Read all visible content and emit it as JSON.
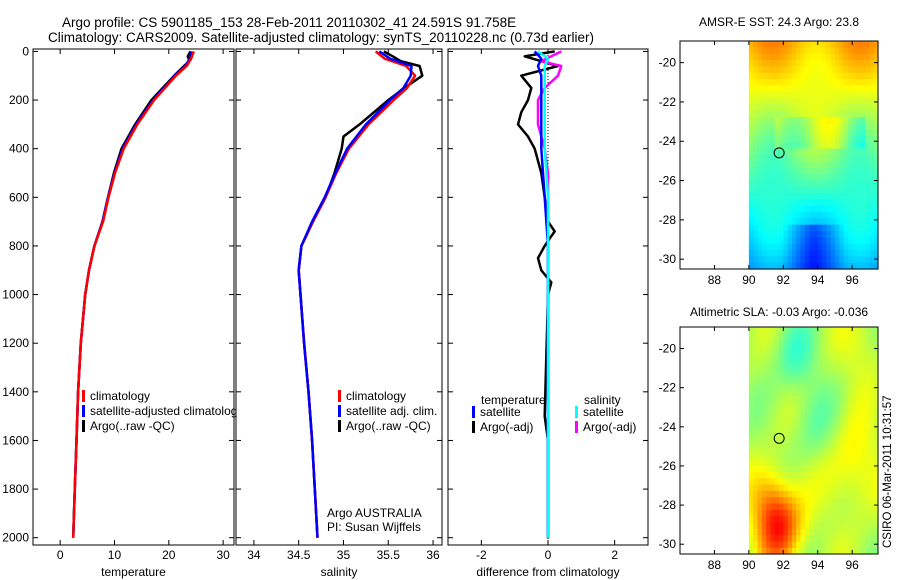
{
  "figure": {
    "title_line1": "Argo profile: CS 5901185_153 28-Feb-2011 20110302_41 24.591S 91.758E",
    "title_line2": "Climatology: CARS2009. Satellite-adjusted climatology: synTS_20110228.nc (0.73d earlier)",
    "credit": "CSIRO 06-Mar-2011 10:31:57"
  },
  "colors": {
    "climatology": "#ff0000",
    "satellite": "#0000ff",
    "argo": "#000000",
    "satellite_salinity": "#00ffff",
    "argo_salinity": "#ff00ff"
  },
  "chart_data": [
    {
      "type": "line",
      "xlabel": "temperature",
      "xlim": [
        -5,
        32
      ],
      "ylim": [
        2030,
        -10
      ],
      "x_ticks": [
        0,
        10,
        20,
        30
      ],
      "y_ticks": [
        0,
        200,
        400,
        600,
        800,
        1000,
        1200,
        1400,
        1600,
        1800,
        2000
      ],
      "legend": {
        "position": "bottom",
        "entries": [
          "climatology",
          "satellite-adjusted climatology",
          "Argo(..raw -QC)"
        ]
      },
      "series": [
        {
          "name": "climatology",
          "depth": [
            0,
            30,
            60,
            100,
            150,
            200,
            300,
            400,
            500,
            600,
            700,
            800,
            900,
            1000,
            1200,
            1400,
            1600,
            1800,
            2000
          ],
          "values": [
            24.6,
            24.1,
            23.3,
            21.3,
            19.3,
            17.3,
            14.2,
            11.7,
            10.1,
            8.9,
            7.9,
            6.3,
            5.3,
            4.6,
            3.8,
            3.3,
            3.0,
            2.7,
            2.4
          ]
        },
        {
          "name": "satellite-adjusted climatology",
          "depth": [
            0,
            30,
            60,
            100,
            150,
            200,
            300,
            400,
            500,
            600,
            700,
            800,
            900,
            1000,
            1200,
            1400,
            1600,
            1800,
            2000
          ],
          "values": [
            24.2,
            23.9,
            23.0,
            21.1,
            19.1,
            17.1,
            14.0,
            11.5,
            10.0,
            8.8,
            7.8,
            6.3,
            5.3,
            4.6,
            3.8,
            3.3,
            3.0,
            2.7,
            2.4
          ]
        },
        {
          "name": "Argo(..raw -QC)",
          "depth": [
            0,
            20,
            40,
            60,
            100,
            150,
            200,
            300,
            400,
            500,
            600,
            700,
            800,
            900,
            1000,
            1200,
            1400,
            1600,
            1800,
            2000
          ],
          "values": [
            24.0,
            23.5,
            23.8,
            22.8,
            21.0,
            18.9,
            16.8,
            13.8,
            11.3,
            9.9,
            8.8,
            7.8,
            6.3,
            5.3,
            4.6,
            3.8,
            3.3,
            3.0,
            2.7,
            2.4
          ]
        }
      ]
    },
    {
      "type": "line",
      "xlabel": "salinity",
      "xlim": [
        33.8,
        36.1
      ],
      "ylim": [
        2030,
        -10
      ],
      "x_ticks": [
        34,
        34.5,
        35,
        35.5,
        36
      ],
      "x_tick_labels": [
        "34",
        "34.5",
        "35",
        "35.5",
        "36"
      ],
      "legend": {
        "position": "bottom",
        "entries": [
          "climatology",
          "satellite adj. clim.",
          "Argo(..raw -QC)"
        ]
      },
      "annotation": [
        "Argo AUSTRALIA",
        "PI: Susan Wijffels"
      ],
      "series": [
        {
          "name": "climatology",
          "depth": [
            0,
            30,
            60,
            100,
            150,
            200,
            300,
            400,
            500,
            600,
            700,
            800,
            900,
            1000,
            1200,
            1400,
            1600,
            1800,
            2000
          ],
          "values": [
            35.36,
            35.46,
            35.7,
            35.8,
            35.71,
            35.56,
            35.28,
            35.06,
            34.92,
            34.8,
            34.66,
            34.53,
            34.5,
            34.52,
            34.56,
            34.61,
            34.65,
            34.68,
            34.71
          ]
        },
        {
          "name": "satellite adj. clim.",
          "depth": [
            0,
            30,
            60,
            100,
            150,
            200,
            300,
            400,
            500,
            600,
            700,
            800,
            900,
            1000,
            1200,
            1400,
            1600,
            1800,
            2000
          ],
          "values": [
            35.4,
            35.52,
            35.76,
            35.75,
            35.67,
            35.52,
            35.25,
            35.04,
            34.91,
            34.79,
            34.65,
            34.53,
            34.5,
            34.52,
            34.56,
            34.61,
            34.65,
            34.68,
            34.71
          ]
        },
        {
          "name": "Argo(..raw -QC)",
          "depth": [
            0,
            20,
            40,
            60,
            100,
            150,
            200,
            300,
            350,
            400,
            500,
            600,
            700,
            800,
            900,
            1000,
            1200,
            1400,
            1600,
            1800,
            2000
          ],
          "values": [
            35.45,
            35.55,
            35.64,
            35.85,
            35.88,
            35.68,
            35.5,
            35.18,
            35.0,
            34.98,
            34.9,
            34.8,
            34.66,
            34.53,
            34.5,
            34.52,
            34.56,
            34.61,
            34.65,
            34.68,
            34.71
          ]
        }
      ]
    },
    {
      "type": "line",
      "xlabel": "difference from climatology",
      "xlim": [
        -3,
        3
      ],
      "ylim": [
        2030,
        -10
      ],
      "x_ticks": [
        -2,
        0,
        2
      ],
      "legend": {
        "position": "bottom",
        "entries": [
          "temperature",
          "satellite",
          "Argo(-adj)",
          "salinity",
          "satellite",
          "Argo(-adj)"
        ]
      },
      "series": [
        {
          "name": "temperature satellite",
          "depth": [
            0,
            30,
            60,
            100,
            150,
            200,
            300,
            400,
            600,
            800,
            1000,
            1500,
            2000
          ],
          "values": [
            -0.4,
            -0.2,
            -0.3,
            -0.2,
            -0.2,
            -0.2,
            -0.2,
            -0.2,
            -0.1,
            0.0,
            0.0,
            0.0,
            0.0
          ]
        },
        {
          "name": "temperature Argo(-adj)",
          "depth": [
            0,
            20,
            40,
            60,
            100,
            150,
            200,
            250,
            300,
            350,
            400,
            500,
            600,
            700,
            740,
            760,
            800,
            850,
            900,
            950,
            1000,
            1500,
            1600,
            2000
          ],
          "values": [
            0.2,
            -0.7,
            -0.2,
            0.3,
            -0.8,
            -0.5,
            -0.6,
            -0.8,
            -0.9,
            -0.6,
            -0.4,
            -0.2,
            -0.1,
            0.0,
            0.2,
            0.1,
            -0.1,
            -0.3,
            -0.2,
            0.1,
            0.0,
            -0.1,
            0.0,
            0.0
          ]
        },
        {
          "name": "salinity satellite",
          "depth": [
            0,
            30,
            60,
            100,
            150,
            200,
            300,
            400,
            600,
            800,
            1000,
            1500,
            2000
          ],
          "values": [
            -0.3,
            0.0,
            -0.1,
            -0.1,
            -0.1,
            -0.1,
            -0.1,
            -0.1,
            0.0,
            0.0,
            0.0,
            0.0,
            0.0
          ]
        },
        {
          "name": "salinity Argo(-adj)",
          "depth": [
            0,
            20,
            40,
            60,
            100,
            150,
            200,
            300,
            400,
            500,
            600,
            700,
            800,
            900,
            1000,
            1500,
            2000
          ],
          "values": [
            0.4,
            0.1,
            -0.2,
            0.4,
            0.3,
            -0.1,
            -0.3,
            -0.3,
            -0.1,
            0.0,
            0.0,
            0.0,
            0.0,
            0.0,
            0.0,
            0.0,
            0.0
          ]
        }
      ]
    },
    {
      "type": "heatmap",
      "title": "AMSR-E SST: 24.3  Argo: 23.8",
      "xlim": [
        86,
        97.5
      ],
      "ylim": [
        -30.5,
        -18.9
      ],
      "x_ticks": [
        88,
        90,
        92,
        94,
        96
      ],
      "y_ticks": [
        -20,
        -22,
        -24,
        -26,
        -28,
        -30
      ],
      "data_lon_min": 90,
      "argo_marker": {
        "lon": 91.758,
        "lat": -24.591
      },
      "colormap": "jet"
    },
    {
      "type": "heatmap",
      "title": "Altimetric SLA: -0.03  Argo: -0.036",
      "xlim": [
        86,
        97.5
      ],
      "ylim": [
        -30.5,
        -18.9
      ],
      "x_ticks": [
        88,
        90,
        92,
        94,
        96
      ],
      "y_ticks": [
        -20,
        -22,
        -24,
        -26,
        -28,
        -30
      ],
      "data_lon_min": 90,
      "argo_marker": {
        "lon": 91.758,
        "lat": -24.591
      },
      "colormap": "jet"
    }
  ]
}
